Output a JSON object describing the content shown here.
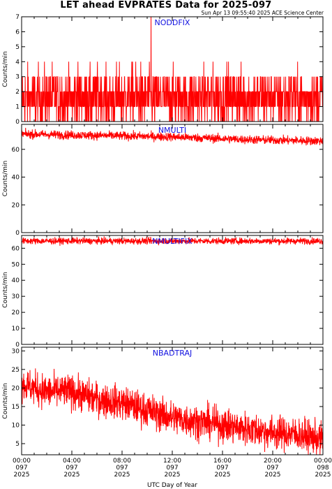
{
  "title": "LET ahead EVPRATES Data for 2025-097",
  "timestamp": "Sun Apr 13 09:55:40 2025 ACE Science Center",
  "xlabel": "UTC Day of Year",
  "colors": {
    "series": "#ff0000",
    "panel_title": "#1010e0",
    "axes": "#000000"
  },
  "chart_data": [
    {
      "type": "line",
      "title": "NODDFIX",
      "ylabel": "Counts/min",
      "ylim": [
        0,
        7
      ],
      "yticks": [
        0,
        1,
        2,
        3,
        4,
        5,
        6,
        7
      ],
      "x_range_hours": [
        0,
        24
      ],
      "n_points": 1440,
      "series": [
        {
          "values_description_mode": "noise",
          "mean": 1.6,
          "min": 0,
          "max": 7
        }
      ],
      "anchors": [
        [
          0,
          1.6
        ],
        [
          24,
          1.6
        ]
      ],
      "noise": 1.3,
      "discrete": true,
      "spikes": [
        [
          10.3,
          7
        ]
      ]
    },
    {
      "type": "line",
      "title": "NMULTI",
      "ylabel": "Counts/min",
      "ylim": [
        0,
        78
      ],
      "yticks": [
        0,
        20,
        40,
        60
      ],
      "x_range_hours": [
        0,
        24
      ],
      "n_points": 1440,
      "anchors": [
        [
          0,
          71
        ],
        [
          6,
          70
        ],
        [
          12,
          69
        ],
        [
          18,
          67
        ],
        [
          24,
          66
        ]
      ],
      "noise": 2.2,
      "discrete": false,
      "spikes": []
    },
    {
      "type": "line",
      "title": "NMULTIFIX",
      "ylabel": "Counts/min",
      "ylim": [
        0,
        68
      ],
      "yticks": [
        0,
        10,
        20,
        30,
        40,
        50,
        60
      ],
      "x_range_hours": [
        0,
        24
      ],
      "n_points": 1440,
      "anchors": [
        [
          0,
          64.5
        ],
        [
          24,
          64.5
        ]
      ],
      "noise": 1.4,
      "discrete": false,
      "spikes": []
    },
    {
      "type": "line",
      "title": "NBADTRAJ",
      "ylabel": "Counts/min",
      "ylim": [
        2,
        31
      ],
      "yticks": [
        5,
        10,
        15,
        20,
        25,
        30
      ],
      "x_range_hours": [
        0,
        24
      ],
      "n_points": 1440,
      "anchors": [
        [
          0,
          21
        ],
        [
          2,
          19
        ],
        [
          4,
          19
        ],
        [
          6,
          17
        ],
        [
          8,
          16
        ],
        [
          10,
          14
        ],
        [
          12,
          12
        ],
        [
          14,
          11
        ],
        [
          16,
          10
        ],
        [
          18,
          9
        ],
        [
          20,
          8
        ],
        [
          22,
          7.5
        ],
        [
          24,
          6
        ]
      ],
      "noise": 3.2,
      "discrete": false,
      "spikes": []
    }
  ],
  "xticks": [
    {
      "hours": 0,
      "time": "00:00",
      "day": "097",
      "year": "2025"
    },
    {
      "hours": 4,
      "time": "04:00",
      "day": "097",
      "year": "2025"
    },
    {
      "hours": 8,
      "time": "08:00",
      "day": "097",
      "year": "2025"
    },
    {
      "hours": 12,
      "time": "12:00",
      "day": "097",
      "year": "2025"
    },
    {
      "hours": 16,
      "time": "16:00",
      "day": "097",
      "year": "2025"
    },
    {
      "hours": 20,
      "time": "20:00",
      "day": "097",
      "year": "2025"
    },
    {
      "hours": 24,
      "time": "00:00",
      "day": "098",
      "year": "2025"
    }
  ]
}
